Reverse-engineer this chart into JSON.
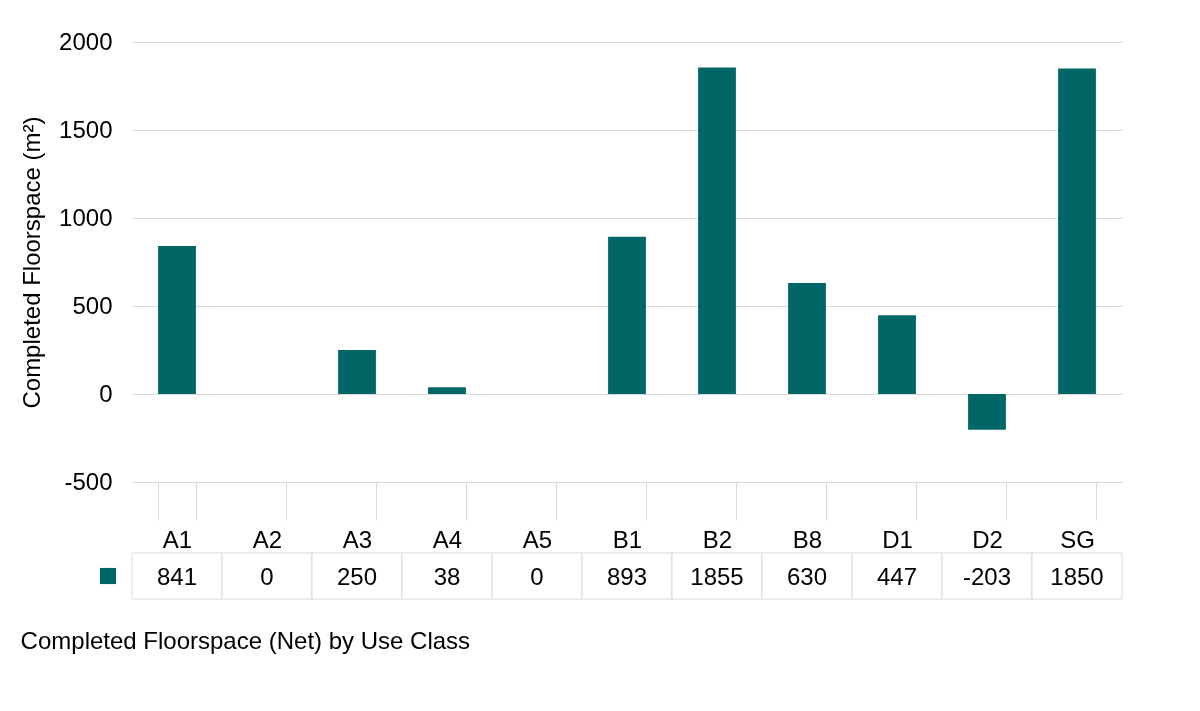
{
  "chart_data": {
    "type": "bar",
    "xlabel": "Completed Floorspace (Net) by Use Class",
    "ylabel": "Completed Floorspace (m²)",
    "categories": [
      "A1",
      "A2",
      "A3",
      "A4",
      "A5",
      "B1",
      "B2",
      "B8",
      "D1",
      "D2",
      "SG"
    ],
    "series": [
      {
        "color": "#006766",
        "values": [
          841,
          0,
          250,
          38,
          0,
          893,
          1855,
          630,
          447,
          -203,
          1850
        ]
      }
    ],
    "ylim": [
      -500,
      2000
    ],
    "yticks": [
      -500,
      0,
      500,
      1000,
      1500,
      2000
    ],
    "grid": "y",
    "data_labels": true
  }
}
